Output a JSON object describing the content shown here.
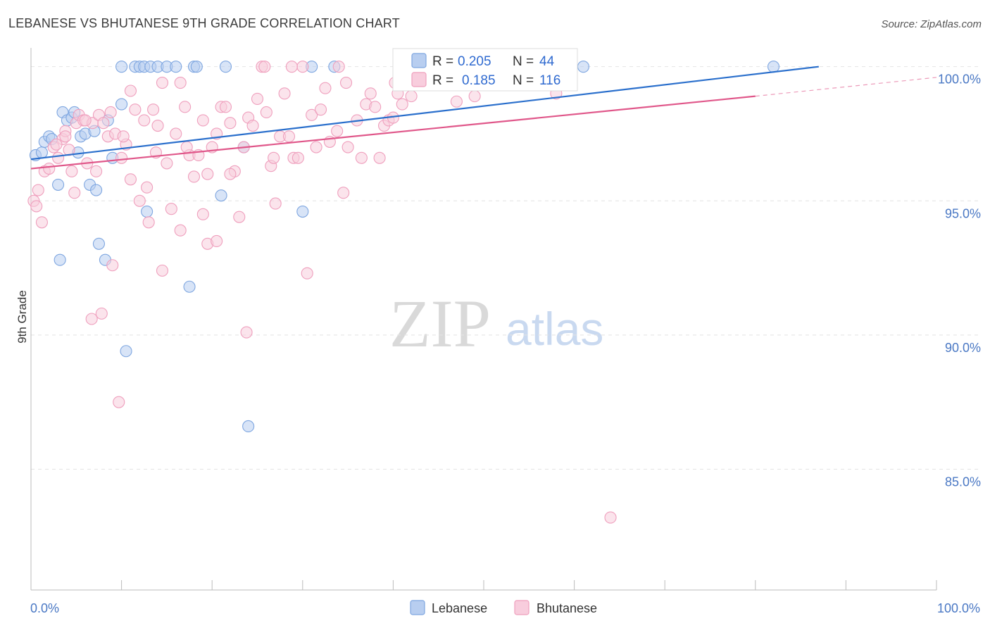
{
  "chart_data": {
    "type": "scatter",
    "title": "LEBANESE VS BHUTANESE 9TH GRADE CORRELATION CHART",
    "source": "Source: ZipAtlas.com",
    "xlabel": "",
    "ylabel": "9th Grade",
    "xlim": [
      0,
      100
    ],
    "ylim": [
      80.5,
      100.7
    ],
    "x_tick_labels": [
      "0.0%",
      "100.0%"
    ],
    "y_ticks": [
      {
        "value": 100,
        "label": "100.0%"
      },
      {
        "value": 95,
        "label": "95.0%"
      },
      {
        "value": 90,
        "label": "90.0%"
      },
      {
        "value": 85,
        "label": "85.0%"
      }
    ],
    "grid": true,
    "legend_position": "bottom",
    "stats_box": {
      "rows": [
        {
          "series": "Lebanese",
          "r_label": "R =",
          "r_value": "0.205",
          "n_label": "N =",
          "n_value": "44"
        },
        {
          "series": "Bhutanese",
          "r_label": "R =",
          "r_value": "0.185",
          "n_label": "N =",
          "n_value": "116"
        }
      ]
    },
    "watermark": {
      "zip": "ZIP",
      "atlas": "atlas"
    },
    "series": [
      {
        "name": "Lebanese",
        "color": "#7ea6e0",
        "fill": "#b8cef0",
        "line_color": "#2a6fcc",
        "trend": {
          "x0": 0,
          "y0": 96.55,
          "x1": 87,
          "y1": 100.0
        },
        "points": [
          [
            0.5,
            96.7
          ],
          [
            1.2,
            96.8
          ],
          [
            1.5,
            97.2
          ],
          [
            2.0,
            97.4
          ],
          [
            2.3,
            97.3
          ],
          [
            3.5,
            98.3
          ],
          [
            4.0,
            98.0
          ],
          [
            4.5,
            98.1
          ],
          [
            4.8,
            98.3
          ],
          [
            5.5,
            97.4
          ],
          [
            5.2,
            96.8
          ],
          [
            6.0,
            97.5
          ],
          [
            7.0,
            97.6
          ],
          [
            8.5,
            98.0
          ],
          [
            9.0,
            96.6
          ],
          [
            10.0,
            98.6
          ],
          [
            3.0,
            95.6
          ],
          [
            6.5,
            95.6
          ],
          [
            7.2,
            95.4
          ],
          [
            3.2,
            92.8
          ],
          [
            7.5,
            93.4
          ],
          [
            8.2,
            92.8
          ],
          [
            12.8,
            94.6
          ],
          [
            17.5,
            91.8
          ],
          [
            21.0,
            95.2
          ],
          [
            23.5,
            97.0
          ],
          [
            30.0,
            94.6
          ],
          [
            10.5,
            89.4
          ],
          [
            24.0,
            86.6
          ],
          [
            10.0,
            100.0
          ],
          [
            11.5,
            100.0
          ],
          [
            12.0,
            100.0
          ],
          [
            12.5,
            100.0
          ],
          [
            13.2,
            100.0
          ],
          [
            14.0,
            100.0
          ],
          [
            15.0,
            100.0
          ],
          [
            16.0,
            100.0
          ],
          [
            18.0,
            100.0
          ],
          [
            18.3,
            100.0
          ],
          [
            21.5,
            100.0
          ],
          [
            31.0,
            100.0
          ],
          [
            33.5,
            100.0
          ],
          [
            61.0,
            100.0
          ],
          [
            82.0,
            100.0
          ]
        ]
      },
      {
        "name": "Bhutanese",
        "color": "#ef9fbd",
        "fill": "#f8cddd",
        "line_color": "#e0578a",
        "trend": {
          "x0": 0,
          "y0": 96.2,
          "x1": 80,
          "y1": 98.9
        },
        "trend_dashed_to": {
          "x": 100,
          "y": 99.6
        },
        "points": [
          [
            0.3,
            95.0
          ],
          [
            0.6,
            94.8
          ],
          [
            0.8,
            95.4
          ],
          [
            1.2,
            94.2
          ],
          [
            1.5,
            96.1
          ],
          [
            2.0,
            96.2
          ],
          [
            2.5,
            97.0
          ],
          [
            3.0,
            96.6
          ],
          [
            3.5,
            97.3
          ],
          [
            3.8,
            97.6
          ],
          [
            4.2,
            96.9
          ],
          [
            4.5,
            96.1
          ],
          [
            4.8,
            95.3
          ],
          [
            5.0,
            97.9
          ],
          [
            5.3,
            98.2
          ],
          [
            5.8,
            98.0
          ],
          [
            6.2,
            96.4
          ],
          [
            6.8,
            97.9
          ],
          [
            7.2,
            96.1
          ],
          [
            7.5,
            98.2
          ],
          [
            8.0,
            97.9
          ],
          [
            8.5,
            97.4
          ],
          [
            8.8,
            98.3
          ],
          [
            9.3,
            97.5
          ],
          [
            10.0,
            96.6
          ],
          [
            10.5,
            97.1
          ],
          [
            11.0,
            99.1
          ],
          [
            11.5,
            98.4
          ],
          [
            12.0,
            95.0
          ],
          [
            12.5,
            98.0
          ],
          [
            12.8,
            95.5
          ],
          [
            13.0,
            94.2
          ],
          [
            13.5,
            98.4
          ],
          [
            14.0,
            97.8
          ],
          [
            14.5,
            99.4
          ],
          [
            15.0,
            96.4
          ],
          [
            15.5,
            94.7
          ],
          [
            16.0,
            97.5
          ],
          [
            16.5,
            99.4
          ],
          [
            17.0,
            98.5
          ],
          [
            17.5,
            96.7
          ],
          [
            18.0,
            95.9
          ],
          [
            18.5,
            96.7
          ],
          [
            19.0,
            98.0
          ],
          [
            19.5,
            96.0
          ],
          [
            20.0,
            97.0
          ],
          [
            20.5,
            97.5
          ],
          [
            21.0,
            98.5
          ],
          [
            21.5,
            98.5
          ],
          [
            22.0,
            97.9
          ],
          [
            22.5,
            96.1
          ],
          [
            23.0,
            94.4
          ],
          [
            23.5,
            97.0
          ],
          [
            24.0,
            98.1
          ],
          [
            24.5,
            97.8
          ],
          [
            25.0,
            98.8
          ],
          [
            25.5,
            100.0
          ],
          [
            26.0,
            98.3
          ],
          [
            26.5,
            96.3
          ],
          [
            27.0,
            94.9
          ],
          [
            27.5,
            97.4
          ],
          [
            28.0,
            99.0
          ],
          [
            28.5,
            97.4
          ],
          [
            29.0,
            96.6
          ],
          [
            29.5,
            96.6
          ],
          [
            30.0,
            100.0
          ],
          [
            30.5,
            92.3
          ],
          [
            31.0,
            98.2
          ],
          [
            31.5,
            97.0
          ],
          [
            32.0,
            98.4
          ],
          [
            32.5,
            99.2
          ],
          [
            33.0,
            97.2
          ],
          [
            34.0,
            100.0
          ],
          [
            34.5,
            95.3
          ],
          [
            35.0,
            97.0
          ],
          [
            36.0,
            98.0
          ],
          [
            36.5,
            96.6
          ],
          [
            37.0,
            98.6
          ],
          [
            38.0,
            98.5
          ],
          [
            38.5,
            96.6
          ],
          [
            39.0,
            97.8
          ],
          [
            39.5,
            98.0
          ],
          [
            40.0,
            98.1
          ],
          [
            40.5,
            99.0
          ],
          [
            41.0,
            98.6
          ],
          [
            42.0,
            98.9
          ],
          [
            47.0,
            98.7
          ],
          [
            49.0,
            98.9
          ],
          [
            58.0,
            99.0
          ],
          [
            59.5,
            100.0
          ],
          [
            2.8,
            97.1
          ],
          [
            6.0,
            98.0
          ],
          [
            9.0,
            92.6
          ],
          [
            11.0,
            95.8
          ],
          [
            13.8,
            96.8
          ],
          [
            14.5,
            92.4
          ],
          [
            16.5,
            93.9
          ],
          [
            19.0,
            94.5
          ],
          [
            19.5,
            93.4
          ],
          [
            20.5,
            93.5
          ],
          [
            22.0,
            96.0
          ],
          [
            7.8,
            90.8
          ],
          [
            6.7,
            90.6
          ],
          [
            23.8,
            90.1
          ],
          [
            9.7,
            87.5
          ],
          [
            64.0,
            83.2
          ],
          [
            25.8,
            100.0
          ],
          [
            28.8,
            100.0
          ],
          [
            34.8,
            99.4
          ],
          [
            37.5,
            99.0
          ],
          [
            40.2,
            99.4
          ],
          [
            3.8,
            97.4
          ],
          [
            10.2,
            97.4
          ],
          [
            17.2,
            97.0
          ],
          [
            26.8,
            96.6
          ],
          [
            33.8,
            97.6
          ]
        ]
      }
    ]
  }
}
